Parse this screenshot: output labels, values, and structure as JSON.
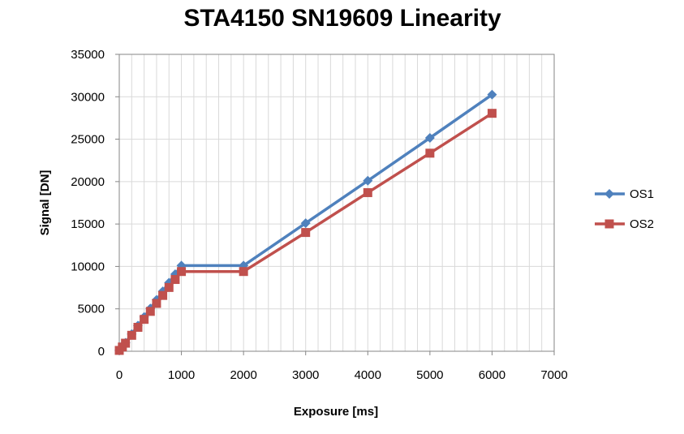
{
  "chart_data": {
    "type": "line",
    "title": "STA4150 SN19609 Linearity",
    "xlabel": "Exposure [ms]",
    "ylabel": "Signal [DN]",
    "xlim": [
      0,
      7000
    ],
    "ylim": [
      0,
      35000
    ],
    "x_ticks": [
      0,
      1000,
      2000,
      3000,
      4000,
      5000,
      6000,
      7000
    ],
    "y_ticks": [
      0,
      5000,
      10000,
      15000,
      20000,
      25000,
      30000,
      35000
    ],
    "grid": true,
    "legend_position": "right",
    "x": [
      0,
      50,
      100,
      200,
      300,
      400,
      500,
      600,
      700,
      800,
      900,
      1000,
      2000,
      3000,
      4000,
      5000,
      6000
    ],
    "series": [
      {
        "name": "OS1",
        "color": "#4f81bd",
        "marker": "diamond",
        "values": [
          100,
          550,
          1000,
          2020,
          3030,
          4040,
          5050,
          6060,
          7070,
          8080,
          9090,
          10100,
          10100,
          15100,
          20100,
          25150,
          30250
        ]
      },
      {
        "name": "OS2",
        "color": "#c0504d",
        "marker": "square",
        "values": [
          100,
          500,
          950,
          1880,
          2820,
          3760,
          4700,
          5640,
          6580,
          7520,
          8460,
          9400,
          9400,
          14000,
          18700,
          23350,
          28050
        ]
      }
    ]
  }
}
